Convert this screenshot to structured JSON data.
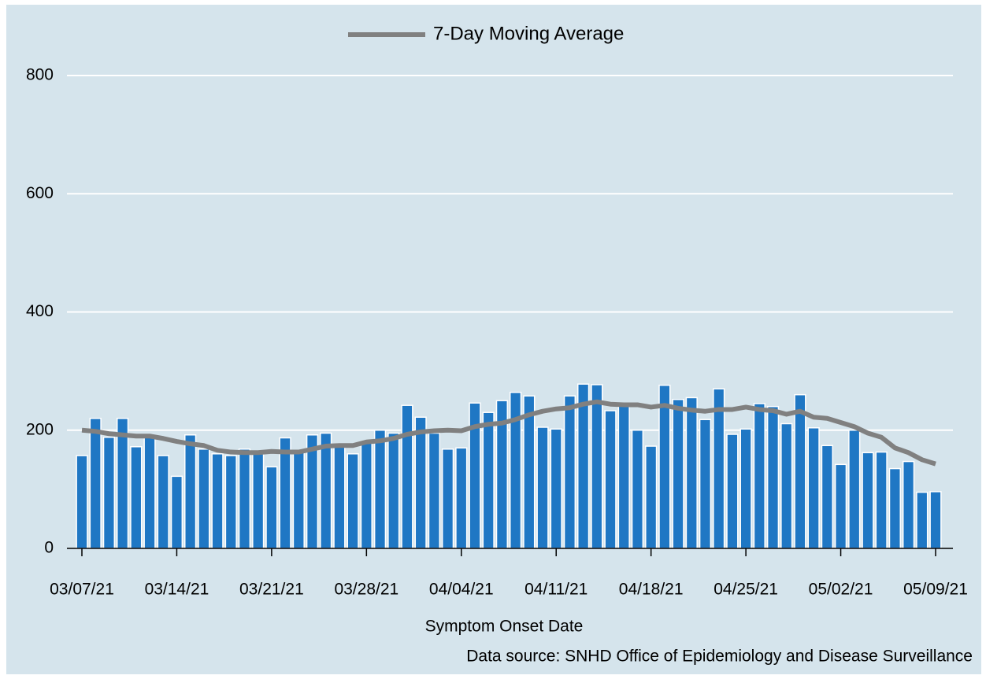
{
  "chart_data": {
    "type": "bar",
    "x_label": "Symptom Onset Date",
    "source": "Data source: SNHD Office of Epidemiology and Disease Surveillance",
    "categories": [
      "03/07/21",
      null,
      null,
      null,
      null,
      null,
      null,
      "03/14/21",
      null,
      null,
      null,
      null,
      null,
      null,
      "03/21/21",
      null,
      null,
      null,
      null,
      null,
      null,
      "03/28/21",
      null,
      null,
      null,
      null,
      null,
      null,
      "04/04/21",
      null,
      null,
      null,
      null,
      null,
      null,
      "04/11/21",
      null,
      null,
      null,
      null,
      null,
      null,
      "04/18/21",
      null,
      null,
      null,
      null,
      null,
      null,
      "04/25/21",
      null,
      null,
      null,
      null,
      null,
      null,
      "05/02/21",
      null,
      null,
      null,
      null,
      null,
      null,
      "05/09/21"
    ],
    "series": [
      {
        "type": "bar",
        "color": "#1f77c4",
        "values": [
          157,
          220,
          188,
          220,
          172,
          190,
          157,
          122,
          192,
          168,
          160,
          157,
          168,
          160,
          138,
          187,
          163,
          192,
          195,
          175,
          160,
          178,
          200,
          195,
          242,
          222,
          195,
          168,
          170,
          246,
          230,
          250,
          264,
          258,
          205,
          202,
          258,
          278,
          277,
          233,
          243,
          200,
          173,
          276,
          252,
          255,
          218,
          270,
          193,
          202,
          245,
          240,
          211,
          260,
          204,
          174,
          142,
          200,
          162,
          163,
          135,
          147,
          95,
          96
        ]
      },
      {
        "type": "line",
        "name": "7-Day Moving Average",
        "color": "#808080",
        "values": [
          200,
          198,
          194,
          192,
          190,
          190,
          186,
          181,
          177,
          174,
          166,
          163,
          162,
          162,
          164,
          163,
          163,
          168,
          173,
          174,
          174,
          180,
          182,
          186,
          193,
          197,
          199,
          200,
          199,
          206,
          210,
          212,
          218,
          226,
          232,
          236,
          238,
          244,
          248,
          244,
          243,
          243,
          239,
          242,
          237,
          234,
          232,
          235,
          235,
          239,
          235,
          233,
          227,
          232,
          222,
          220,
          213,
          206,
          195,
          188,
          170,
          162,
          150,
          143
        ]
      }
    ],
    "ylim": [
      0,
      800
    ],
    "yticks": [
      0,
      200,
      400,
      600,
      800
    ],
    "grid": true,
    "legend": "top"
  }
}
